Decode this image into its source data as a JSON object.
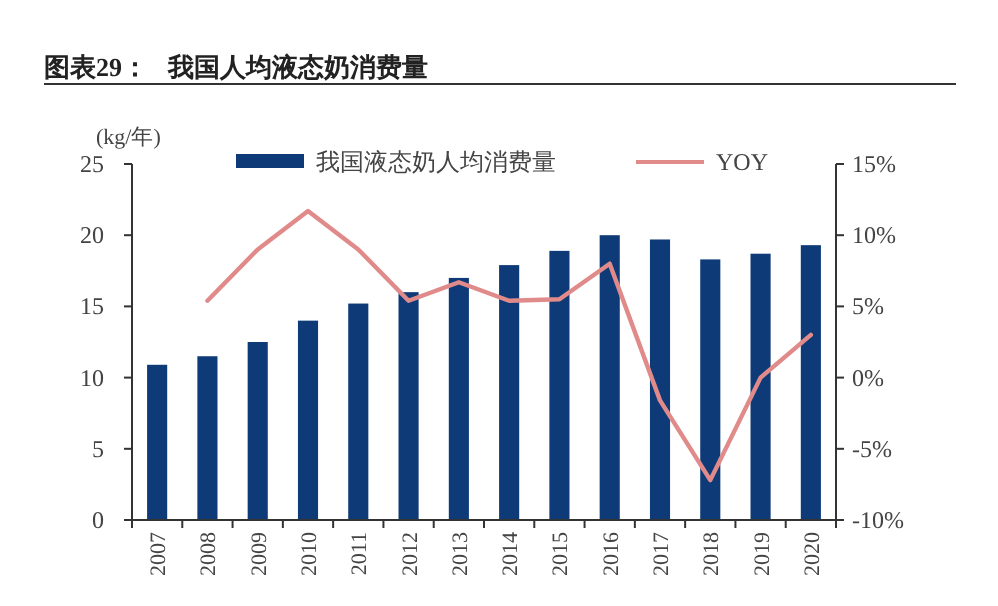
{
  "chart_data": {
    "type": "bar",
    "title": "图表29：   我国人均液态奶消费量",
    "ylabel": "(kg/年)",
    "categories": [
      "2007",
      "2008",
      "2009",
      "2010",
      "2011",
      "2012",
      "2013",
      "2014",
      "2015",
      "2016",
      "2017",
      "2018",
      "2019",
      "2020"
    ],
    "series": [
      {
        "name": "我国液态奶人均消费量",
        "color": "#0e3a78",
        "values": [
          10.9,
          11.5,
          12.5,
          14.0,
          15.2,
          16.0,
          17.0,
          17.9,
          18.9,
          20.0,
          19.7,
          18.3,
          18.7,
          19.3
        ]
      },
      {
        "name": "YOY",
        "type": "line",
        "axis": "y2",
        "color": "#e08a8a",
        "values": [
          null,
          5.4,
          9,
          11.7,
          9,
          5.4,
          6.7,
          5.4,
          5.5,
          8,
          -1.6,
          -7.2,
          0,
          3
        ]
      }
    ],
    "ylim": [
      0,
      25
    ],
    "yticks": [
      0,
      5,
      10,
      15,
      20,
      25
    ],
    "y2lim": [
      -10,
      15
    ],
    "y2ticks": [
      {
        "value": -10,
        "label": "-10%"
      },
      {
        "value": -5,
        "label": "-5%"
      },
      {
        "value": 0,
        "label": "0%"
      },
      {
        "value": 5,
        "label": "5%"
      },
      {
        "value": 10,
        "label": "10%"
      },
      {
        "value": 15,
        "label": "15%"
      }
    ],
    "legend": "top",
    "grid": false,
    "marker": "none",
    "line_style": "solid"
  }
}
